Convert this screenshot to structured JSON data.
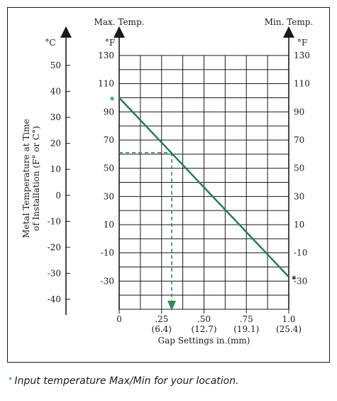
{
  "chart_data": {
    "type": "line",
    "x_axis": {
      "label": "Gap Settings in.(mm)",
      "range": [
        0,
        1.0
      ],
      "ticks": [
        {
          "value": 0,
          "label": "0",
          "sublabel": ""
        },
        {
          "value": 0.25,
          "label": ".25",
          "sublabel": "(6.4)"
        },
        {
          "value": 0.5,
          "label": ".50",
          "sublabel": "(12.7)"
        },
        {
          "value": 0.75,
          "label": ".75",
          "sublabel": "(19.1)"
        },
        {
          "value": 1.0,
          "label": "1.0",
          "sublabel": "(25.4)"
        }
      ],
      "minor_step": 0.125
    },
    "y_axis_f": {
      "unit": "°F",
      "range": [
        -50,
        130
      ],
      "ticks": [
        130,
        110,
        90,
        70,
        50,
        30,
        10,
        -10,
        -30
      ],
      "minor_step": 10,
      "left_header": "Max. Temp.",
      "right_header": "Min. Temp."
    },
    "y_axis_c": {
      "unit": "°C",
      "title": "Metal Temperature at Time of Installation (F° or C°)",
      "ticks": [
        50,
        40,
        30,
        20,
        10,
        0,
        -10,
        -20,
        -30,
        -40
      ]
    },
    "series": [
      {
        "x": [
          0,
          1.0
        ],
        "y": [
          100,
          -27
        ],
        "color": "#1f7a57"
      }
    ],
    "markers": [
      {
        "text": "*",
        "x": 0,
        "y": 100,
        "color": "#2e8b57",
        "side": "left"
      },
      {
        "text": "*",
        "x": 1.0,
        "y": -27,
        "color": "#1a1a1a",
        "side": "right"
      }
    ],
    "example_guide": {
      "temp_f": 61,
      "gap_in": 0.31,
      "color": "#2e8b57"
    },
    "grid": true
  },
  "footnote": {
    "star": "*",
    "text": "Input temperature Max/Min for your location."
  }
}
